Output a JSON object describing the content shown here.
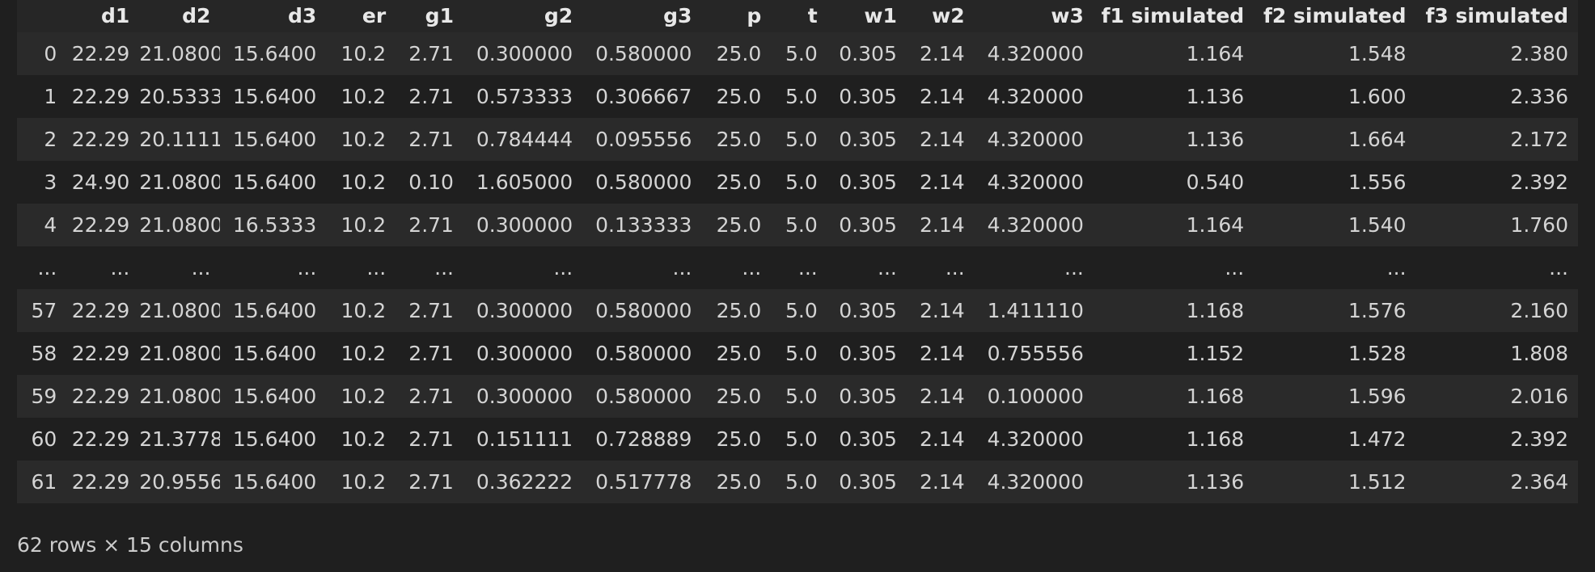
{
  "columns": [
    "",
    "d1",
    "d2",
    "d3",
    "er",
    "g1",
    "g2",
    "g3",
    "p",
    "t",
    "w1",
    "w2",
    "w3",
    "f1 simulated",
    "f2 simulated",
    "f3 simulated"
  ],
  "rows": [
    {
      "index": "0",
      "cells": [
        "22.29",
        "21.0800",
        "15.6400",
        "10.2",
        "2.71",
        "0.300000",
        "0.580000",
        "25.0",
        "5.0",
        "0.305",
        "2.14",
        "4.320000",
        "1.164",
        "1.548",
        "2.380"
      ]
    },
    {
      "index": "1",
      "cells": [
        "22.29",
        "20.5333",
        "15.6400",
        "10.2",
        "2.71",
        "0.573333",
        "0.306667",
        "25.0",
        "5.0",
        "0.305",
        "2.14",
        "4.320000",
        "1.136",
        "1.600",
        "2.336"
      ]
    },
    {
      "index": "2",
      "cells": [
        "22.29",
        "20.1111",
        "15.6400",
        "10.2",
        "2.71",
        "0.784444",
        "0.095556",
        "25.0",
        "5.0",
        "0.305",
        "2.14",
        "4.320000",
        "1.136",
        "1.664",
        "2.172"
      ]
    },
    {
      "index": "3",
      "cells": [
        "24.90",
        "21.0800",
        "15.6400",
        "10.2",
        "0.10",
        "1.605000",
        "0.580000",
        "25.0",
        "5.0",
        "0.305",
        "2.14",
        "4.320000",
        "0.540",
        "1.556",
        "2.392"
      ]
    },
    {
      "index": "4",
      "cells": [
        "22.29",
        "21.0800",
        "16.5333",
        "10.2",
        "2.71",
        "0.300000",
        "0.133333",
        "25.0",
        "5.0",
        "0.305",
        "2.14",
        "4.320000",
        "1.164",
        "1.540",
        "1.760"
      ]
    },
    {
      "index": "...",
      "cells": [
        "...",
        "...",
        "...",
        "...",
        "...",
        "...",
        "...",
        "...",
        "...",
        "...",
        "...",
        "...",
        "...",
        "...",
        "..."
      ]
    },
    {
      "index": "57",
      "cells": [
        "22.29",
        "21.0800",
        "15.6400",
        "10.2",
        "2.71",
        "0.300000",
        "0.580000",
        "25.0",
        "5.0",
        "0.305",
        "2.14",
        "1.411110",
        "1.168",
        "1.576",
        "2.160"
      ]
    },
    {
      "index": "58",
      "cells": [
        "22.29",
        "21.0800",
        "15.6400",
        "10.2",
        "2.71",
        "0.300000",
        "0.580000",
        "25.0",
        "5.0",
        "0.305",
        "2.14",
        "0.755556",
        "1.152",
        "1.528",
        "1.808"
      ]
    },
    {
      "index": "59",
      "cells": [
        "22.29",
        "21.0800",
        "15.6400",
        "10.2",
        "2.71",
        "0.300000",
        "0.580000",
        "25.0",
        "5.0",
        "0.305",
        "2.14",
        "0.100000",
        "1.168",
        "1.596",
        "2.016"
      ]
    },
    {
      "index": "60",
      "cells": [
        "22.29",
        "21.3778",
        "15.6400",
        "10.2",
        "2.71",
        "0.151111",
        "0.728889",
        "25.0",
        "5.0",
        "0.305",
        "2.14",
        "4.320000",
        "1.168",
        "1.472",
        "2.392"
      ]
    },
    {
      "index": "61",
      "cells": [
        "22.29",
        "20.9556",
        "15.6400",
        "10.2",
        "2.71",
        "0.362222",
        "0.517778",
        "25.0",
        "5.0",
        "0.305",
        "2.14",
        "4.320000",
        "1.136",
        "1.512",
        "2.364"
      ]
    }
  ],
  "shape_text": "62 rows × 15 columns"
}
